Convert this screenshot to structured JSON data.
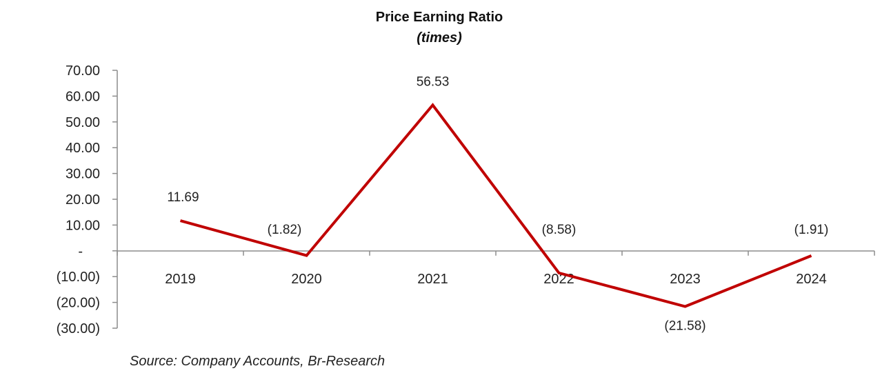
{
  "source_note": "Source: Company Accounts, Br-Research",
  "colors": {
    "series_line": "#c00000",
    "axis": "#8c8c8c"
  },
  "chart_data": {
    "type": "line",
    "title": "Price Earning Ratio",
    "subtitle": "(times)",
    "categories": [
      "2019",
      "2020",
      "2021",
      "2022",
      "2023",
      "2024"
    ],
    "series": [
      {
        "values": [
          11.69,
          -1.82,
          56.53,
          -8.58,
          -21.58,
          -1.91
        ],
        "data_labels": [
          "11.69",
          "(1.82)",
          "56.53",
          "(8.58)",
          "(21.58)",
          "(1.91)"
        ]
      }
    ],
    "ylim": [
      -30,
      70
    ],
    "y_ticks": [
      70,
      60,
      50,
      40,
      30,
      20,
      10,
      0,
      -10,
      -20,
      -30
    ],
    "y_tick_labels": [
      "70.00",
      "60.00",
      "50.00",
      "40.00",
      "30.00",
      "20.00",
      "10.00",
      "-",
      "(10.00)",
      "(20.00)",
      "(30.00)"
    ],
    "grid": false,
    "legend": "none"
  }
}
